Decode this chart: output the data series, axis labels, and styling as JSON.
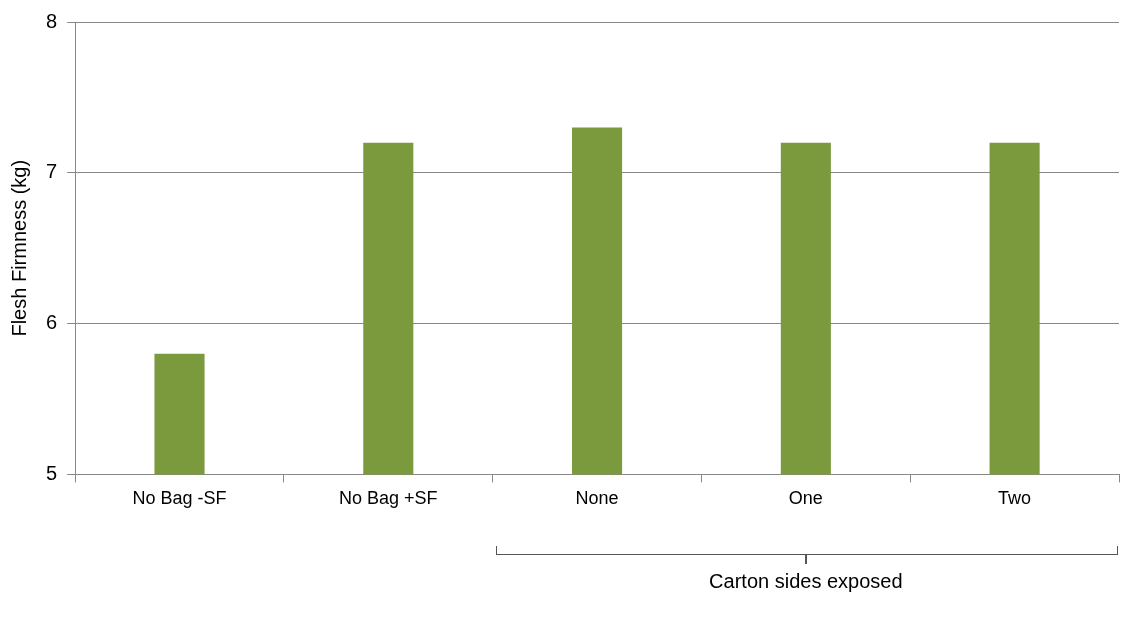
{
  "chart_data": {
    "type": "bar",
    "ylabel": "Flesh Firmness (kg)",
    "categories": [
      "No Bag -SF",
      "No Bag +SF",
      "None",
      "One",
      "Two"
    ],
    "values": [
      5.8,
      7.2,
      7.3,
      7.2,
      7.2
    ],
    "color": "#7b9a3d",
    "ylim": [
      5,
      8
    ],
    "yticks": [
      5,
      6,
      7,
      8
    ],
    "grid": "y",
    "legend": false,
    "annotations": [
      "Carton sides exposed"
    ]
  }
}
